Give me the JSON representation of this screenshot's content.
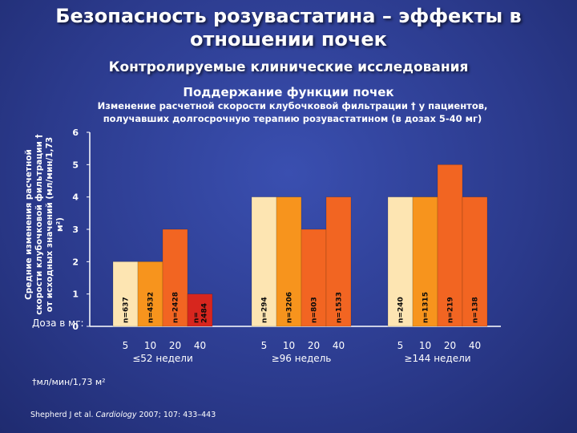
{
  "slide": {
    "title_line1": "Безопасность розувастатина – эффекты в",
    "title_line2": "отношении почек",
    "subtitle": "Контролируемые клинические исследования",
    "panel_title": "Поддержание функции почек",
    "caption_line1": "Изменение расчетной скорости клубочковой фильтрации † у пациентов,",
    "caption_line2": "получавших долгосрочную терапию розувастатином (в дозах 5-40 мг)",
    "dose_caption": "Доза в мг:",
    "footnote": "†мл/мин/1,73 м²",
    "reference_authors": "Shepherd J et al. ",
    "reference_journal": "Cardiology",
    "reference_details": " 2007; 107: 433–443"
  },
  "colors": {
    "background": "#2b3a8c",
    "bar_light": "#fde5b2",
    "bar_mid": "#f7941d",
    "bar_dark": "#f26522",
    "bar_red": "#d7261e",
    "axis": "#ffffff"
  },
  "chart_data": {
    "type": "bar",
    "title": "Поддержание функции почек",
    "xlabel": "",
    "ylabel": "Средние изменения расчетной скорости клубочковой фильтрации † от исходных значений (мл/мин/1,73 м²)",
    "ylim": [
      0,
      6
    ],
    "yticks": [
      0,
      1,
      2,
      3,
      4,
      5,
      6
    ],
    "grid": false,
    "groups": [
      {
        "label": "≤52 недели",
        "doses": [
          "5",
          "10",
          "20",
          "40"
        ],
        "values": [
          2,
          2,
          3,
          1
        ],
        "n_labels": [
          "n=637",
          "n=4532",
          "n=2428",
          "n=\n2484"
        ],
        "colors": [
          "#fde5b2",
          "#f7941d",
          "#f26522",
          "#d7261e"
        ]
      },
      {
        "label": "≥96 недель",
        "doses": [
          "5",
          "10",
          "20",
          "40"
        ],
        "values": [
          4,
          4,
          3,
          4
        ],
        "n_labels": [
          "n=294",
          "n=3206",
          "n=803",
          "n=1533"
        ],
        "colors": [
          "#fde5b2",
          "#f7941d",
          "#f26522",
          "#f26522"
        ]
      },
      {
        "label": "≥144 недели",
        "doses": [
          "5",
          "10",
          "20",
          "40"
        ],
        "values": [
          4,
          4,
          5,
          4
        ],
        "n_labels": [
          "n=240",
          "n=1315",
          "n=219",
          "n=138"
        ],
        "colors": [
          "#fde5b2",
          "#f7941d",
          "#f26522",
          "#f26522"
        ]
      }
    ]
  }
}
